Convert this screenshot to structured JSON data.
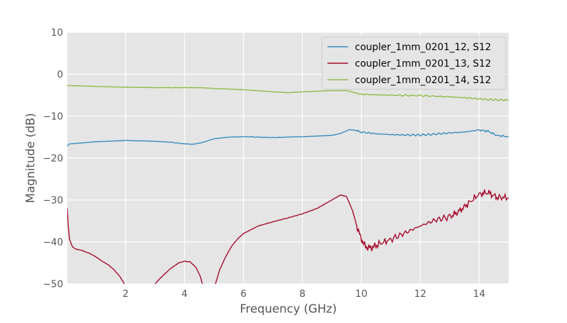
{
  "chart_data": {
    "type": "line",
    "title": "",
    "xlabel": "Frequency (GHz)",
    "ylabel": "Magnitude (dB)",
    "xlim": [
      0.02,
      15
    ],
    "ylim": [
      -50,
      10
    ],
    "xticks": [
      2,
      4,
      6,
      8,
      10,
      12,
      14
    ],
    "yticks": [
      10,
      0,
      -10,
      -20,
      -30,
      -40,
      -50
    ],
    "xtick_labels": [
      "2",
      "4",
      "6",
      "8",
      "10",
      "12",
      "14"
    ],
    "ytick_labels": [
      "10",
      "0",
      "−10",
      "−20",
      "−30",
      "−40",
      "−50"
    ],
    "grid": true,
    "legend_position": "top-right",
    "style": "ggplot",
    "series": [
      {
        "name": "coupler_1mm_0201_12, S12",
        "color": "#348ABD",
        "x": [
          0.02,
          0.1,
          0.5,
          1,
          2,
          3,
          3.5,
          4,
          4.3,
          4.6,
          5,
          5.5,
          6,
          7,
          8,
          9,
          9.3,
          9.6,
          9.8,
          10,
          10.5,
          11,
          11.5,
          12,
          12.5,
          13,
          13.5,
          14,
          14.3,
          14.6,
          15
        ],
        "y": [
          -17.2,
          -16.6,
          -16.4,
          -16.1,
          -15.8,
          -16.0,
          -16.2,
          -16.6,
          -16.7,
          -16.3,
          -15.4,
          -15.0,
          -14.9,
          -15.1,
          -14.9,
          -14.6,
          -14.1,
          -13.2,
          -13.4,
          -13.8,
          -14.2,
          -14.4,
          -14.5,
          -14.5,
          -14.3,
          -14.0,
          -13.8,
          -13.3,
          -13.6,
          -14.6,
          -14.9
        ]
      },
      {
        "name": "coupler_1mm_0201_13, S12",
        "color": "#A60628",
        "x": [
          0.02,
          0.05,
          0.1,
          0.2,
          0.3,
          0.5,
          0.8,
          1.0,
          1.2,
          1.4,
          1.6,
          1.8,
          2.0,
          2.2,
          2.5,
          2.8,
          3.0,
          3.2,
          3.5,
          3.8,
          4.0,
          4.2,
          4.4,
          4.55,
          4.65,
          4.75,
          5.0,
          5.05,
          5.2,
          5.4,
          5.6,
          5.8,
          6.0,
          6.5,
          7.0,
          7.5,
          8.0,
          8.5,
          9.0,
          9.3,
          9.5,
          9.7,
          9.9,
          10.1,
          10.25,
          10.4,
          10.6,
          11,
          11.5,
          12,
          12.5,
          13,
          13.3,
          13.6,
          14,
          14.3,
          14.6,
          15
        ],
        "y": [
          -32.0,
          -36.0,
          -39.5,
          -41.2,
          -41.7,
          -42.0,
          -42.8,
          -43.6,
          -44.6,
          -45.4,
          -46.6,
          -48.2,
          -50.5,
          -52.5,
          -54.5,
          -52.0,
          -50.0,
          -48.5,
          -46.5,
          -45.0,
          -44.6,
          -44.8,
          -46.2,
          -48.5,
          -51.5,
          -54.0,
          -54.0,
          -50.0,
          -46.5,
          -43.5,
          -41.0,
          -39.3,
          -38.0,
          -36.2,
          -35.2,
          -34.3,
          -33.3,
          -32.0,
          -30.0,
          -28.8,
          -29.2,
          -32.5,
          -37.5,
          -40.8,
          -41.5,
          -41.2,
          -40.5,
          -39.4,
          -37.8,
          -36.2,
          -34.8,
          -34.0,
          -32.8,
          -31.0,
          -28.6,
          -28.2,
          -29.4,
          -29.4
        ]
      },
      {
        "name": "coupler_1mm_0201_14, S12",
        "color": "#8EBA42",
        "x": [
          0.02,
          1,
          2,
          3,
          4,
          4.5,
          5,
          6,
          7,
          7.5,
          8,
          9,
          9.5,
          10,
          10.5,
          11,
          12,
          13,
          13.5,
          14,
          14.5,
          15
        ],
        "y": [
          -2.7,
          -2.9,
          -3.1,
          -3.2,
          -3.2,
          -3.2,
          -3.4,
          -3.7,
          -4.2,
          -4.4,
          -4.2,
          -3.9,
          -3.9,
          -4.8,
          -4.9,
          -5.0,
          -5.1,
          -5.4,
          -5.6,
          -5.9,
          -6.1,
          -6.2
        ]
      }
    ]
  }
}
